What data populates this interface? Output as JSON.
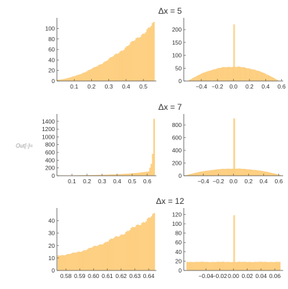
{
  "out_label": "Out[◦]=",
  "colors": {
    "bar": "#ffd285",
    "bar_edge": "#f3bf6c",
    "axis": "#4a4a4a",
    "text": "#333333"
  },
  "chart_data": [
    {
      "title": "Δx = 5",
      "type": "bar",
      "side": "left",
      "row": 0,
      "bins": 72,
      "xlim": [
        0.0,
        0.575
      ],
      "ylim": [
        0,
        115
      ],
      "xticks": [
        0.1,
        0.2,
        0.3,
        0.4,
        0.5
      ],
      "xtick_labels": [
        "0.1",
        "0.2",
        "0.3",
        "0.4",
        "0.5"
      ],
      "yticks": [
        0,
        20,
        40,
        60,
        80,
        100
      ],
      "ytick_labels": [
        "0",
        "20",
        "40",
        "60",
        "80",
        "100"
      ],
      "series": {
        "kind": "rising",
        "x0": 0.0,
        "x1": 0.565,
        "start": 2,
        "end": 110
      }
    },
    {
      "title": "",
      "type": "bar",
      "side": "right",
      "row": 0,
      "bins": 70,
      "xlim": [
        -0.62,
        0.62
      ],
      "ylim": [
        0,
        235
      ],
      "xticks": [
        -0.4,
        -0.2,
        0.0,
        0.2,
        0.4,
        0.6
      ],
      "xtick_labels": [
        "−0.4",
        "−0.2",
        "0.0",
        "0.2",
        "0.4",
        "0.6"
      ],
      "yticks": [
        0,
        50,
        100,
        150,
        200
      ],
      "ytick_labels": [
        "0",
        "50",
        "100",
        "150",
        "200"
      ],
      "series": {
        "kind": "dome_spike",
        "x0": -0.565,
        "x1": 0.565,
        "peak": 55,
        "spike": 220
      }
    },
    {
      "title": "Δx = 7",
      "type": "bar",
      "side": "left",
      "row": 1,
      "bins": 72,
      "xlim": [
        0.0,
        0.66
      ],
      "ylim": [
        0,
        1520
      ],
      "xticks": [
        0.1,
        0.2,
        0.3,
        0.4,
        0.5,
        0.6
      ],
      "xtick_labels": [
        "0.1",
        "0.2",
        "0.3",
        "0.4",
        "0.5",
        "0.6"
      ],
      "yticks": [
        0,
        200,
        400,
        600,
        800,
        1000,
        1200,
        1400
      ],
      "ytick_labels": [
        "0",
        "200",
        "400",
        "600",
        "800",
        "1000",
        "1200",
        "1400"
      ],
      "series": {
        "kind": "steep",
        "x0": 0.0,
        "x1": 0.65,
        "start": 5,
        "end": 1460
      }
    },
    {
      "title": "",
      "type": "bar",
      "side": "right",
      "row": 1,
      "bins": 70,
      "xlim": [
        -0.66,
        0.66
      ],
      "ylim": [
        0,
        930
      ],
      "xticks": [
        -0.4,
        -0.2,
        0.0,
        0.2,
        0.4,
        0.6
      ],
      "xtick_labels": [
        "−0.4",
        "−0.2",
        "0.0",
        "0.2",
        "0.4",
        "0.6"
      ],
      "yticks": [
        0,
        200,
        400,
        600,
        800
      ],
      "ytick_labels": [
        "0",
        "200",
        "400",
        "600",
        "800"
      ],
      "series": {
        "kind": "dome_spike",
        "x0": -0.65,
        "x1": 0.65,
        "peak": 110,
        "spike": 900
      }
    },
    {
      "title": "Δx = 12",
      "type": "bar",
      "side": "left",
      "row": 2,
      "bins": 72,
      "xlim": [
        0.5735,
        0.6455
      ],
      "ylim": [
        0,
        48
      ],
      "xticks": [
        0.58,
        0.59,
        0.6,
        0.61,
        0.62,
        0.63,
        0.64
      ],
      "xtick_labels": [
        "0.58",
        "0.59",
        "0.60",
        "0.61",
        "0.62",
        "0.63",
        "0.64"
      ],
      "yticks": [
        0,
        10,
        20,
        30,
        40
      ],
      "ytick_labels": [
        "0",
        "10",
        "20",
        "30",
        "40"
      ],
      "series": {
        "kind": "rising",
        "x0": 0.574,
        "x1": 0.6445,
        "start": 12,
        "end": 45
      }
    },
    {
      "title": "",
      "type": "bar",
      "side": "right",
      "row": 2,
      "bins": 70,
      "xlim": [
        -0.072,
        0.072
      ],
      "ylim": [
        0,
        128
      ],
      "xticks": [
        -0.04,
        -0.02,
        0.0,
        0.02,
        0.04,
        0.06
      ],
      "xtick_labels": [
        "−0.04",
        "−0.02",
        "0.00",
        "0.02",
        "0.04",
        "0.06"
      ],
      "yticks": [
        0,
        20,
        40,
        60,
        80,
        100,
        120
      ],
      "ytick_labels": [
        "0",
        "20",
        "40",
        "60",
        "80",
        "100",
        "120"
      ],
      "series": {
        "kind": "flat_spike",
        "x0": -0.068,
        "x1": 0.068,
        "level": 18,
        "spike": 118
      }
    }
  ]
}
